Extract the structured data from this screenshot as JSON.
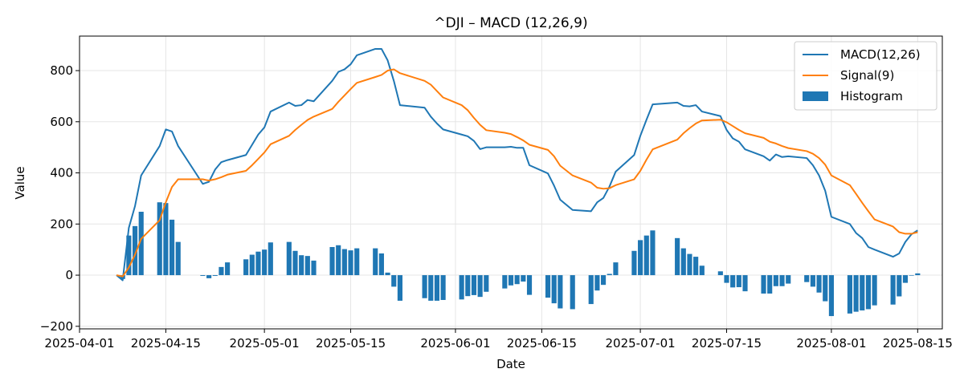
{
  "chart_data": {
    "type": "line",
    "title": "^DJI – MACD (12,26,9)",
    "xlabel": "Date",
    "ylabel": "Value",
    "xlim": [
      "2025-04-01",
      "2025-08-19"
    ],
    "ylim": [
      -210,
      935
    ],
    "grid": true,
    "legend_position": "top-right",
    "x_ticks": [
      "2025-04-01",
      "2025-04-15",
      "2025-05-01",
      "2025-05-15",
      "2025-06-01",
      "2025-06-15",
      "2025-07-01",
      "2025-07-15",
      "2025-08-01",
      "2025-08-15"
    ],
    "y_ticks": [
      -200,
      0,
      200,
      400,
      600,
      800
    ],
    "colors": {
      "macd": "#1f77b4",
      "signal": "#ff7f0e",
      "histogram": "#1f77b4",
      "grid": "#e5e5e5"
    },
    "series": [
      {
        "name": "MACD(12,26)",
        "kind": "line",
        "points": [
          [
            "2025-04-07",
            0
          ],
          [
            "2025-04-08",
            -20
          ],
          [
            "2025-04-09",
            185
          ],
          [
            "2025-04-10",
            270
          ],
          [
            "2025-04-11",
            390
          ],
          [
            "2025-04-14",
            505
          ],
          [
            "2025-04-15",
            570
          ],
          [
            "2025-04-16",
            562
          ],
          [
            "2025-04-17",
            505
          ],
          [
            "2025-04-21",
            357
          ],
          [
            "2025-04-22",
            365
          ],
          [
            "2025-04-23",
            413
          ],
          [
            "2025-04-24",
            442
          ],
          [
            "2025-04-25",
            450
          ],
          [
            "2025-04-28",
            470
          ],
          [
            "2025-04-29",
            510
          ],
          [
            "2025-04-30",
            550
          ],
          [
            "2025-05-01",
            578
          ],
          [
            "2025-05-02",
            640
          ],
          [
            "2025-05-05",
            675
          ],
          [
            "2025-05-06",
            662
          ],
          [
            "2025-05-07",
            665
          ],
          [
            "2025-05-08",
            685
          ],
          [
            "2025-05-09",
            680
          ],
          [
            "2025-05-12",
            760
          ],
          [
            "2025-05-13",
            795
          ],
          [
            "2025-05-14",
            805
          ],
          [
            "2025-05-15",
            825
          ],
          [
            "2025-05-16",
            860
          ],
          [
            "2025-05-19",
            885
          ],
          [
            "2025-05-20",
            885
          ],
          [
            "2025-05-21",
            840
          ],
          [
            "2025-05-22",
            760
          ],
          [
            "2025-05-23",
            665
          ],
          [
            "2025-05-27",
            655
          ],
          [
            "2025-05-28",
            620
          ],
          [
            "2025-05-29",
            593
          ],
          [
            "2025-05-30",
            570
          ],
          [
            "2025-06-02",
            550
          ],
          [
            "2025-06-03",
            543
          ],
          [
            "2025-06-04",
            525
          ],
          [
            "2025-06-05",
            493
          ],
          [
            "2025-06-06",
            500
          ],
          [
            "2025-06-09",
            500
          ],
          [
            "2025-06-10",
            502
          ],
          [
            "2025-06-11",
            498
          ],
          [
            "2025-06-12",
            498
          ],
          [
            "2025-06-13",
            430
          ],
          [
            "2025-06-16",
            398
          ],
          [
            "2025-06-17",
            350
          ],
          [
            "2025-06-18",
            295
          ],
          [
            "2025-06-20",
            255
          ],
          [
            "2025-06-23",
            250
          ],
          [
            "2025-06-24",
            285
          ],
          [
            "2025-06-25",
            302
          ],
          [
            "2025-06-26",
            347
          ],
          [
            "2025-06-27",
            405
          ],
          [
            "2025-06-30",
            470
          ],
          [
            "2025-07-01",
            545
          ],
          [
            "2025-07-02",
            608
          ],
          [
            "2025-07-03",
            668
          ],
          [
            "2025-07-07",
            675
          ],
          [
            "2025-07-08",
            662
          ],
          [
            "2025-07-09",
            660
          ],
          [
            "2025-07-10",
            665
          ],
          [
            "2025-07-11",
            640
          ],
          [
            "2025-07-14",
            622
          ],
          [
            "2025-07-15",
            568
          ],
          [
            "2025-07-16",
            535
          ],
          [
            "2025-07-17",
            522
          ],
          [
            "2025-07-18",
            492
          ],
          [
            "2025-07-21",
            465
          ],
          [
            "2025-07-22",
            448
          ],
          [
            "2025-07-23",
            472
          ],
          [
            "2025-07-24",
            462
          ],
          [
            "2025-07-25",
            465
          ],
          [
            "2025-07-28",
            458
          ],
          [
            "2025-07-29",
            430
          ],
          [
            "2025-07-30",
            390
          ],
          [
            "2025-07-31",
            330
          ],
          [
            "2025-08-01",
            228
          ],
          [
            "2025-08-04",
            200
          ],
          [
            "2025-08-05",
            165
          ],
          [
            "2025-08-06",
            145
          ],
          [
            "2025-08-07",
            110
          ],
          [
            "2025-08-08",
            100
          ],
          [
            "2025-08-11",
            72
          ],
          [
            "2025-08-12",
            85
          ],
          [
            "2025-08-13",
            130
          ],
          [
            "2025-08-14",
            160
          ],
          [
            "2025-08-15",
            175
          ]
        ]
      },
      {
        "name": "Signal(9)",
        "kind": "line",
        "points": [
          [
            "2025-04-07",
            0
          ],
          [
            "2025-04-08",
            -5
          ],
          [
            "2025-04-09",
            30
          ],
          [
            "2025-04-10",
            80
          ],
          [
            "2025-04-11",
            142
          ],
          [
            "2025-04-14",
            215
          ],
          [
            "2025-04-15",
            285
          ],
          [
            "2025-04-16",
            345
          ],
          [
            "2025-04-17",
            375
          ],
          [
            "2025-04-21",
            375
          ],
          [
            "2025-04-22",
            370
          ],
          [
            "2025-04-23",
            375
          ],
          [
            "2025-04-24",
            383
          ],
          [
            "2025-04-25",
            393
          ],
          [
            "2025-04-28",
            408
          ],
          [
            "2025-04-29",
            430
          ],
          [
            "2025-04-30",
            455
          ],
          [
            "2025-05-01",
            480
          ],
          [
            "2025-05-02",
            512
          ],
          [
            "2025-05-05",
            545
          ],
          [
            "2025-05-06",
            568
          ],
          [
            "2025-05-07",
            588
          ],
          [
            "2025-05-08",
            607
          ],
          [
            "2025-05-09",
            620
          ],
          [
            "2025-05-12",
            650
          ],
          [
            "2025-05-13",
            678
          ],
          [
            "2025-05-14",
            703
          ],
          [
            "2025-05-15",
            728
          ],
          [
            "2025-05-16",
            752
          ],
          [
            "2025-05-19",
            775
          ],
          [
            "2025-05-20",
            783
          ],
          [
            "2025-05-21",
            800
          ],
          [
            "2025-05-22",
            805
          ],
          [
            "2025-05-23",
            790
          ],
          [
            "2025-05-27",
            760
          ],
          [
            "2025-05-28",
            745
          ],
          [
            "2025-05-29",
            720
          ],
          [
            "2025-05-30",
            695
          ],
          [
            "2025-06-02",
            665
          ],
          [
            "2025-06-03",
            645
          ],
          [
            "2025-06-04",
            615
          ],
          [
            "2025-06-05",
            588
          ],
          [
            "2025-06-06",
            567
          ],
          [
            "2025-06-09",
            557
          ],
          [
            "2025-06-10",
            552
          ],
          [
            "2025-06-11",
            540
          ],
          [
            "2025-06-12",
            527
          ],
          [
            "2025-06-13",
            510
          ],
          [
            "2025-06-16",
            490
          ],
          [
            "2025-06-17",
            465
          ],
          [
            "2025-06-18",
            428
          ],
          [
            "2025-06-20",
            390
          ],
          [
            "2025-06-23",
            362
          ],
          [
            "2025-06-24",
            342
          ],
          [
            "2025-06-25",
            338
          ],
          [
            "2025-06-26",
            340
          ],
          [
            "2025-06-27",
            352
          ],
          [
            "2025-06-30",
            375
          ],
          [
            "2025-07-01",
            408
          ],
          [
            "2025-07-02",
            452
          ],
          [
            "2025-07-03",
            492
          ],
          [
            "2025-07-07",
            530
          ],
          [
            "2025-07-08",
            555
          ],
          [
            "2025-07-09",
            575
          ],
          [
            "2025-07-10",
            593
          ],
          [
            "2025-07-11",
            605
          ],
          [
            "2025-07-14",
            608
          ],
          [
            "2025-07-15",
            598
          ],
          [
            "2025-07-16",
            583
          ],
          [
            "2025-07-17",
            568
          ],
          [
            "2025-07-18",
            555
          ],
          [
            "2025-07-21",
            537
          ],
          [
            "2025-07-22",
            522
          ],
          [
            "2025-07-23",
            515
          ],
          [
            "2025-07-24",
            505
          ],
          [
            "2025-07-25",
            497
          ],
          [
            "2025-07-28",
            485
          ],
          [
            "2025-07-29",
            475
          ],
          [
            "2025-07-30",
            458
          ],
          [
            "2025-07-31",
            432
          ],
          [
            "2025-08-01",
            390
          ],
          [
            "2025-08-04",
            352
          ],
          [
            "2025-08-05",
            318
          ],
          [
            "2025-08-06",
            283
          ],
          [
            "2025-08-07",
            250
          ],
          [
            "2025-08-08",
            218
          ],
          [
            "2025-08-11",
            190
          ],
          [
            "2025-08-12",
            168
          ],
          [
            "2025-08-13",
            162
          ],
          [
            "2025-08-14",
            162
          ],
          [
            "2025-08-15",
            168
          ]
        ]
      },
      {
        "name": "Histogram",
        "kind": "bar",
        "points": [
          [
            "2025-04-07",
            0
          ],
          [
            "2025-04-08",
            -15
          ],
          [
            "2025-04-09",
            155
          ],
          [
            "2025-04-10",
            192
          ],
          [
            "2025-04-11",
            248
          ],
          [
            "2025-04-14",
            285
          ],
          [
            "2025-04-15",
            282
          ],
          [
            "2025-04-16",
            217
          ],
          [
            "2025-04-17",
            130
          ],
          [
            "2025-04-21",
            -3
          ],
          [
            "2025-04-22",
            -12
          ],
          [
            "2025-04-23",
            -3
          ],
          [
            "2025-04-24",
            32
          ],
          [
            "2025-04-25",
            50
          ],
          [
            "2025-04-28",
            62
          ],
          [
            "2025-04-29",
            80
          ],
          [
            "2025-04-30",
            92
          ],
          [
            "2025-05-01",
            100
          ],
          [
            "2025-05-02",
            128
          ],
          [
            "2025-05-05",
            130
          ],
          [
            "2025-05-06",
            95
          ],
          [
            "2025-05-07",
            78
          ],
          [
            "2025-05-08",
            75
          ],
          [
            "2025-05-09",
            57
          ],
          [
            "2025-05-12",
            110
          ],
          [
            "2025-05-13",
            117
          ],
          [
            "2025-05-14",
            102
          ],
          [
            "2025-05-15",
            97
          ],
          [
            "2025-05-16",
            105
          ],
          [
            "2025-05-19",
            105
          ],
          [
            "2025-05-20",
            85
          ],
          [
            "2025-05-21",
            10
          ],
          [
            "2025-05-22",
            -45
          ],
          [
            "2025-05-23",
            -100
          ],
          [
            "2025-05-27",
            -90
          ],
          [
            "2025-05-28",
            -100
          ],
          [
            "2025-05-29",
            -100
          ],
          [
            "2025-05-30",
            -97
          ],
          [
            "2025-06-02",
            -95
          ],
          [
            "2025-06-03",
            -82
          ],
          [
            "2025-06-04",
            -78
          ],
          [
            "2025-06-05",
            -85
          ],
          [
            "2025-06-06",
            -65
          ],
          [
            "2025-06-09",
            -52
          ],
          [
            "2025-06-10",
            -40
          ],
          [
            "2025-06-11",
            -35
          ],
          [
            "2025-06-12",
            -25
          ],
          [
            "2025-06-13",
            -77
          ],
          [
            "2025-06-16",
            -88
          ],
          [
            "2025-06-17",
            -110
          ],
          [
            "2025-06-18",
            -130
          ],
          [
            "2025-06-20",
            -133
          ],
          [
            "2025-06-23",
            -113
          ],
          [
            "2025-06-24",
            -60
          ],
          [
            "2025-06-25",
            -38
          ],
          [
            "2025-06-26",
            5
          ],
          [
            "2025-06-27",
            50
          ],
          [
            "2025-06-30",
            95
          ],
          [
            "2025-07-01",
            137
          ],
          [
            "2025-07-02",
            155
          ],
          [
            "2025-07-03",
            175
          ],
          [
            "2025-07-07",
            145
          ],
          [
            "2025-07-08",
            105
          ],
          [
            "2025-07-09",
            83
          ],
          [
            "2025-07-10",
            72
          ],
          [
            "2025-07-11",
            37
          ],
          [
            "2025-07-14",
            15
          ],
          [
            "2025-07-15",
            -30
          ],
          [
            "2025-07-16",
            -48
          ],
          [
            "2025-07-17",
            -47
          ],
          [
            "2025-07-18",
            -63
          ],
          [
            "2025-07-21",
            -72
          ],
          [
            "2025-07-22",
            -72
          ],
          [
            "2025-07-23",
            -43
          ],
          [
            "2025-07-24",
            -43
          ],
          [
            "2025-07-25",
            -33
          ],
          [
            "2025-07-28",
            -27
          ],
          [
            "2025-07-29",
            -45
          ],
          [
            "2025-07-30",
            -68
          ],
          [
            "2025-07-31",
            -102
          ],
          [
            "2025-08-01",
            -160
          ],
          [
            "2025-08-04",
            -150
          ],
          [
            "2025-08-05",
            -143
          ],
          [
            "2025-08-06",
            -138
          ],
          [
            "2025-08-07",
            -133
          ],
          [
            "2025-08-08",
            -118
          ],
          [
            "2025-08-11",
            -115
          ],
          [
            "2025-08-12",
            -83
          ],
          [
            "2025-08-13",
            -30
          ],
          [
            "2025-08-14",
            -2
          ],
          [
            "2025-08-15",
            7
          ]
        ]
      }
    ]
  }
}
